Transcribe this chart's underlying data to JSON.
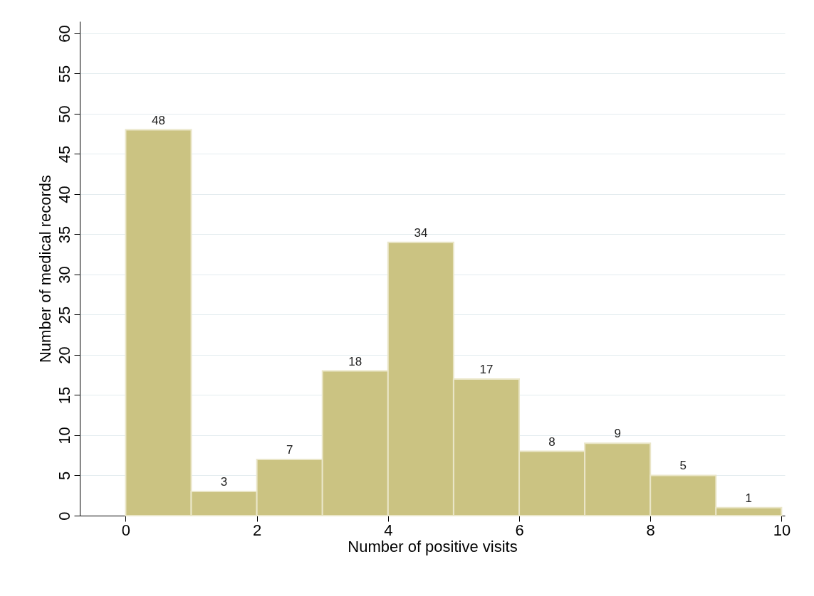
{
  "chart_data": {
    "type": "histogram",
    "xlabel": "Number of positive visits",
    "ylabel": "Number of medical records",
    "bins": [
      0,
      1,
      2,
      3,
      4,
      5,
      6,
      7,
      8,
      9,
      10
    ],
    "values": [
      48,
      3,
      7,
      18,
      34,
      17,
      8,
      9,
      5,
      1
    ],
    "color": "#cbc382",
    "xlim": [
      -0.7,
      10.05
    ],
    "xticks": [
      0,
      2,
      4,
      6,
      8,
      10
    ],
    "ylim": [
      0,
      61.5
    ],
    "yticks": [
      0,
      5,
      10,
      15,
      20,
      25,
      30,
      35,
      40,
      45,
      50,
      55,
      60
    ],
    "grid": "y",
    "data_labels": true
  }
}
